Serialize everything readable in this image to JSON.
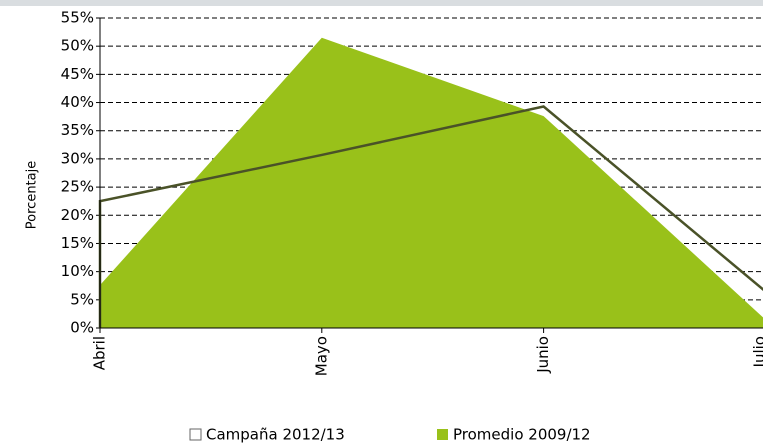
{
  "chart_data": {
    "type": "area",
    "ylabel": "Porcentaje",
    "categories": [
      "Abril",
      "Mayo",
      "Junio",
      "Julio"
    ],
    "series": [
      {
        "name": "Campaña 2012/13",
        "color": "#4a5228",
        "values": [
          22.5,
          30.7,
          39.3,
          6.5
        ]
      },
      {
        "name": "Promedio 2009/12",
        "color": "#99c11a",
        "values": [
          7.6,
          51.5,
          37.6,
          1.5
        ]
      }
    ],
    "ylim": [
      0,
      55
    ],
    "yticks": [
      {
        "value": 0,
        "label": "0%"
      },
      {
        "value": 5,
        "label": "5%"
      },
      {
        "value": 10,
        "label": "10%"
      },
      {
        "value": 15,
        "label": "15%"
      },
      {
        "value": 20,
        "label": "20%"
      },
      {
        "value": 25,
        "label": "25%"
      },
      {
        "value": 30,
        "label": "30%"
      },
      {
        "value": 35,
        "label": "35%"
      },
      {
        "value": 40,
        "label": "40%"
      },
      {
        "value": 45,
        "label": "45%"
      },
      {
        "value": 50,
        "label": "50%"
      },
      {
        "value": 55,
        "label": "55%"
      }
    ],
    "grid": true,
    "legend": "bottom"
  }
}
